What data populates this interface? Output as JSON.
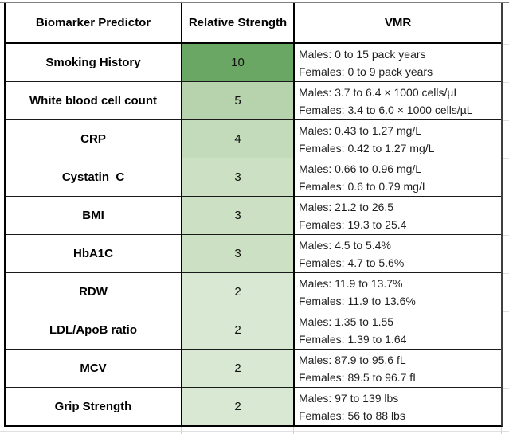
{
  "table": {
    "headers": [
      "Biomarker Predictor",
      "Relative Strength",
      "VMR"
    ],
    "strength_color_scale": {
      "description": "green color scale on Relative Strength values",
      "max_value_color": "#6aa765",
      "min_value_color": "#d9e8d2"
    },
    "rows": [
      {
        "biomarker": "Smoking History",
        "strength": "10",
        "color": "#6aa765",
        "vmr_male": "Males: 0 to 15 pack years",
        "vmr_female": "Females: 0 to 9 pack years"
      },
      {
        "biomarker": "White blood cell count",
        "strength": "5",
        "color": "#b7d3ae",
        "vmr_male": "Males: 3.7 to 6.4 × 1000 cells/µL",
        "vmr_female": "Females: 3.4 to 6.0 × 1000 cells/µL"
      },
      {
        "biomarker": "CRP",
        "strength": "4",
        "color": "#c3dbba",
        "vmr_male": "Males: 0.43 to 1.27 mg/L",
        "vmr_female": "Females: 0.42 to 1.27 mg/L"
      },
      {
        "biomarker": "Cystatin_C",
        "strength": "3",
        "color": "#cce1c4",
        "vmr_male": "Males: 0.66 to 0.96 mg/L",
        "vmr_female": "Females: 0.6 to 0.79 mg/L"
      },
      {
        "biomarker": "BMI",
        "strength": "3",
        "color": "#cce1c4",
        "vmr_male": "Males: 21.2 to 26.5",
        "vmr_female": "Females: 19.3 to 25.4"
      },
      {
        "biomarker": "HbA1C",
        "strength": "3",
        "color": "#cce1c4",
        "vmr_male": "Males: 4.5 to 5.4%",
        "vmr_female": "Females: 4.7 to 5.6%"
      },
      {
        "biomarker": "RDW",
        "strength": "2",
        "color": "#d9e8d2",
        "vmr_male": "Males: 11.9 to 13.7%",
        "vmr_female": "Females: 11.9 to 13.6%"
      },
      {
        "biomarker": "LDL/ApoB ratio",
        "strength": "2",
        "color": "#d9e8d2",
        "vmr_male": "Males: 1.35 to 1.55",
        "vmr_female": "Females: 1.39 to 1.64"
      },
      {
        "biomarker": "MCV",
        "strength": "2",
        "color": "#d9e8d2",
        "vmr_male": "Males: 87.9 to 95.6 fL",
        "vmr_female": "Females: 89.5 to 96.7 fL"
      },
      {
        "biomarker": "Grip Strength",
        "strength": "2",
        "color": "#d9e8d2",
        "vmr_male": "Males: 97 to 139 lbs",
        "vmr_female": "Females: 56 to 88 lbs"
      }
    ]
  }
}
